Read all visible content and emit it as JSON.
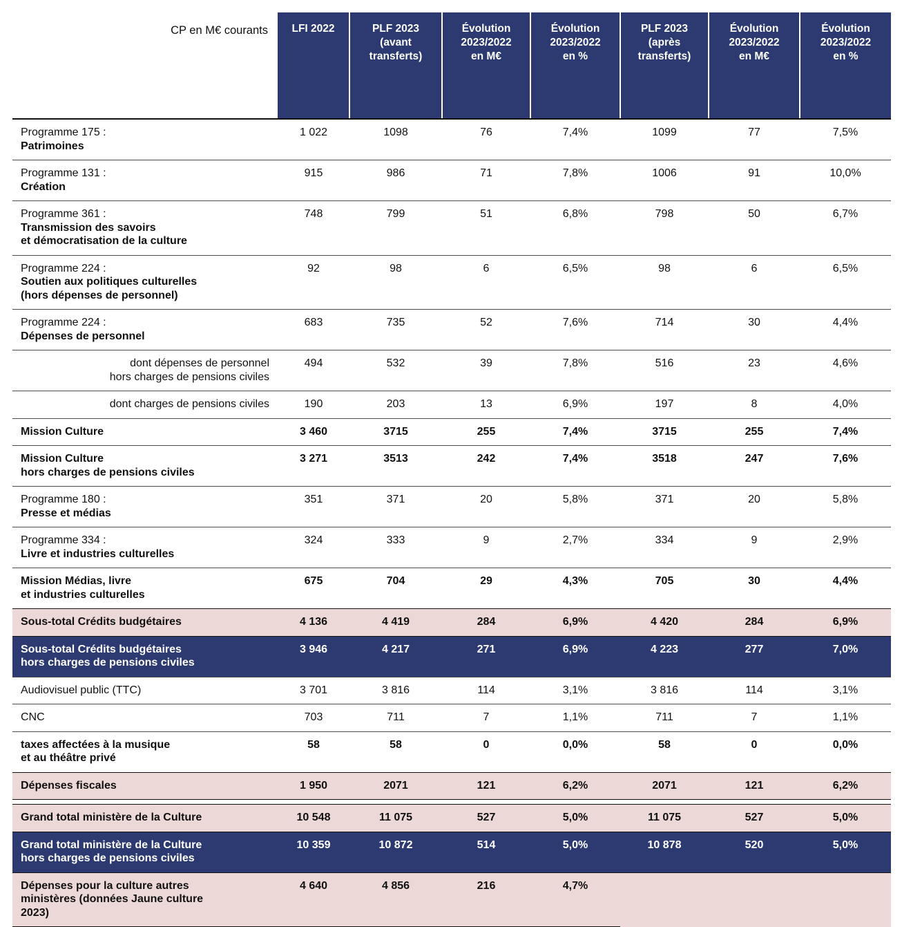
{
  "table": {
    "unit_label": "CP en M€ courants",
    "colors": {
      "header_bg": "#2d3a71",
      "highlight_pink": "#ecd8d6",
      "highlight_blue": "#2d3a71",
      "text": "#111111"
    },
    "columns": [
      "LFI 2022",
      "PLF 2023\n(avant\ntransferts)",
      "Évolution\n2023/2022\nen M€",
      "Évolution\n2023/2022\nen %",
      "PLF 2023\n(après\ntransferts)",
      "Évolution\n2023/2022\nen M€",
      "Évolution\n2023/2022\nen %"
    ],
    "rows": [
      {
        "head": "Programme 175 :",
        "name": "Patrimoines",
        "style": "white",
        "bold_values": false,
        "values": [
          "1 022",
          "1098",
          "76",
          "7,4%",
          "1099",
          "77",
          "7,5%"
        ]
      },
      {
        "head": "Programme 131 :",
        "name": "Création",
        "style": "white",
        "bold_values": false,
        "values": [
          "915",
          "986",
          "71",
          "7,8%",
          "1006",
          "91",
          "10,0%"
        ]
      },
      {
        "head": "Programme 361 :",
        "name": "Transmission des savoirs\net démocratisation de la culture",
        "style": "white",
        "bold_values": false,
        "values": [
          "748",
          "799",
          "51",
          "6,8%",
          "798",
          "50",
          "6,7%"
        ]
      },
      {
        "head": "Programme 224 :",
        "name": "Soutien aux politiques culturelles\n(hors dépenses de personnel)",
        "style": "white",
        "bold_values": false,
        "values": [
          "92",
          "98",
          "6",
          "6,5%",
          "98",
          "6",
          "6,5%"
        ]
      },
      {
        "head": "Programme 224 :",
        "name": "Dépenses de personnel",
        "style": "white",
        "bold_values": false,
        "values": [
          "683",
          "735",
          "52",
          "7,6%",
          "714",
          "30",
          "4,4%"
        ]
      },
      {
        "head": "dont dépenses de personnel\nhors charges de pensions civiles",
        "name": "",
        "align": "right",
        "style": "white",
        "bold_values": false,
        "values": [
          "494",
          "532",
          "39",
          "7,8%",
          "516",
          "23",
          "4,6%"
        ]
      },
      {
        "head": "dont charges de pensions civiles",
        "name": "",
        "align": "right",
        "style": "white",
        "bold_values": false,
        "values": [
          "190",
          "203",
          "13",
          "6,9%",
          "197",
          "8",
          "4,0%"
        ]
      },
      {
        "head": "",
        "name": "Mission Culture",
        "style": "white",
        "bold_values": true,
        "values": [
          "3 460",
          "3715",
          "255",
          "7,4%",
          "3715",
          "255",
          "7,4%"
        ]
      },
      {
        "head": "",
        "name": "Mission Culture\nhors charges de pensions civiles",
        "style": "white",
        "bold_values": true,
        "values": [
          "3 271",
          "3513",
          "242",
          "7,4%",
          "3518",
          "247",
          "7,6%"
        ]
      },
      {
        "head": "Programme 180 :",
        "name": "Presse et médias",
        "style": "white",
        "bold_values": false,
        "values": [
          "351",
          "371",
          "20",
          "5,8%",
          "371",
          "20",
          "5,8%"
        ]
      },
      {
        "head": "Programme 334 :",
        "name": "Livre et industries culturelles",
        "style": "white",
        "bold_values": false,
        "values": [
          "324",
          "333",
          "9",
          "2,7%",
          "334",
          "9",
          "2,9%"
        ]
      },
      {
        "head": "",
        "name": "Mission Médias, livre\net industries culturelles",
        "style": "white",
        "bold_values": true,
        "values": [
          "675",
          "704",
          "29",
          "4,3%",
          "705",
          "30",
          "4,4%"
        ]
      },
      {
        "head": "",
        "name": "Sous-total Crédits budgétaires",
        "style": "pink",
        "bold_values": true,
        "values": [
          "4 136",
          "4 419",
          "284",
          "6,9%",
          "4 420",
          "284",
          "6,9%"
        ]
      },
      {
        "head": "",
        "name": "Sous-total Crédits budgétaires\nhors charges de pensions civiles",
        "style": "blue",
        "bold_values": true,
        "values": [
          "3 946",
          "4 217",
          "271",
          "6,9%",
          "4 223",
          "277",
          "7,0%"
        ]
      },
      {
        "head": "Audiovisuel public (TTC)",
        "name": "",
        "style": "white",
        "bold_values": false,
        "values": [
          "3 701",
          "3 816",
          "114",
          "3,1%",
          "3 816",
          "114",
          "3,1%"
        ]
      },
      {
        "head": "CNC",
        "name": "",
        "style": "white",
        "bold_values": false,
        "values": [
          "703",
          "711",
          "7",
          "1,1%",
          "711",
          "7",
          "1,1%"
        ]
      },
      {
        "head": "",
        "name": "taxes affectées à la musique\net au théâtre privé",
        "style": "white",
        "bold_values": true,
        "values": [
          "58",
          "58",
          "0",
          "0,0%",
          "58",
          "0",
          "0,0%"
        ]
      },
      {
        "head": "",
        "name": "Dépenses fiscales",
        "style": "pink",
        "bold_values": true,
        "values": [
          "1 950",
          "2071",
          "121",
          "6,2%",
          "2071",
          "121",
          "6,2%"
        ]
      },
      {
        "head": "",
        "name": "Grand total ministère de la Culture",
        "style": "pink",
        "bold_values": true,
        "gap_before": true,
        "values": [
          "10 548",
          "11 075",
          "527",
          "5,0%",
          "11 075",
          "527",
          "5,0%"
        ]
      },
      {
        "head": "",
        "name": "Grand total ministère de la Culture\nhors charges de pensions civiles",
        "style": "blue",
        "bold_values": true,
        "values": [
          "10 359",
          "10 872",
          "514",
          "5,0%",
          "10 878",
          "520",
          "5,0%"
        ]
      },
      {
        "head": "",
        "name": "Dépenses pour la culture autres\nministères (données Jaune culture\n2023)",
        "style": "pink",
        "bold_values": true,
        "limit": 4,
        "last": true,
        "values": [
          "4 640",
          "4 856",
          "216",
          "4,7%",
          "",
          "",
          ""
        ]
      }
    ]
  }
}
